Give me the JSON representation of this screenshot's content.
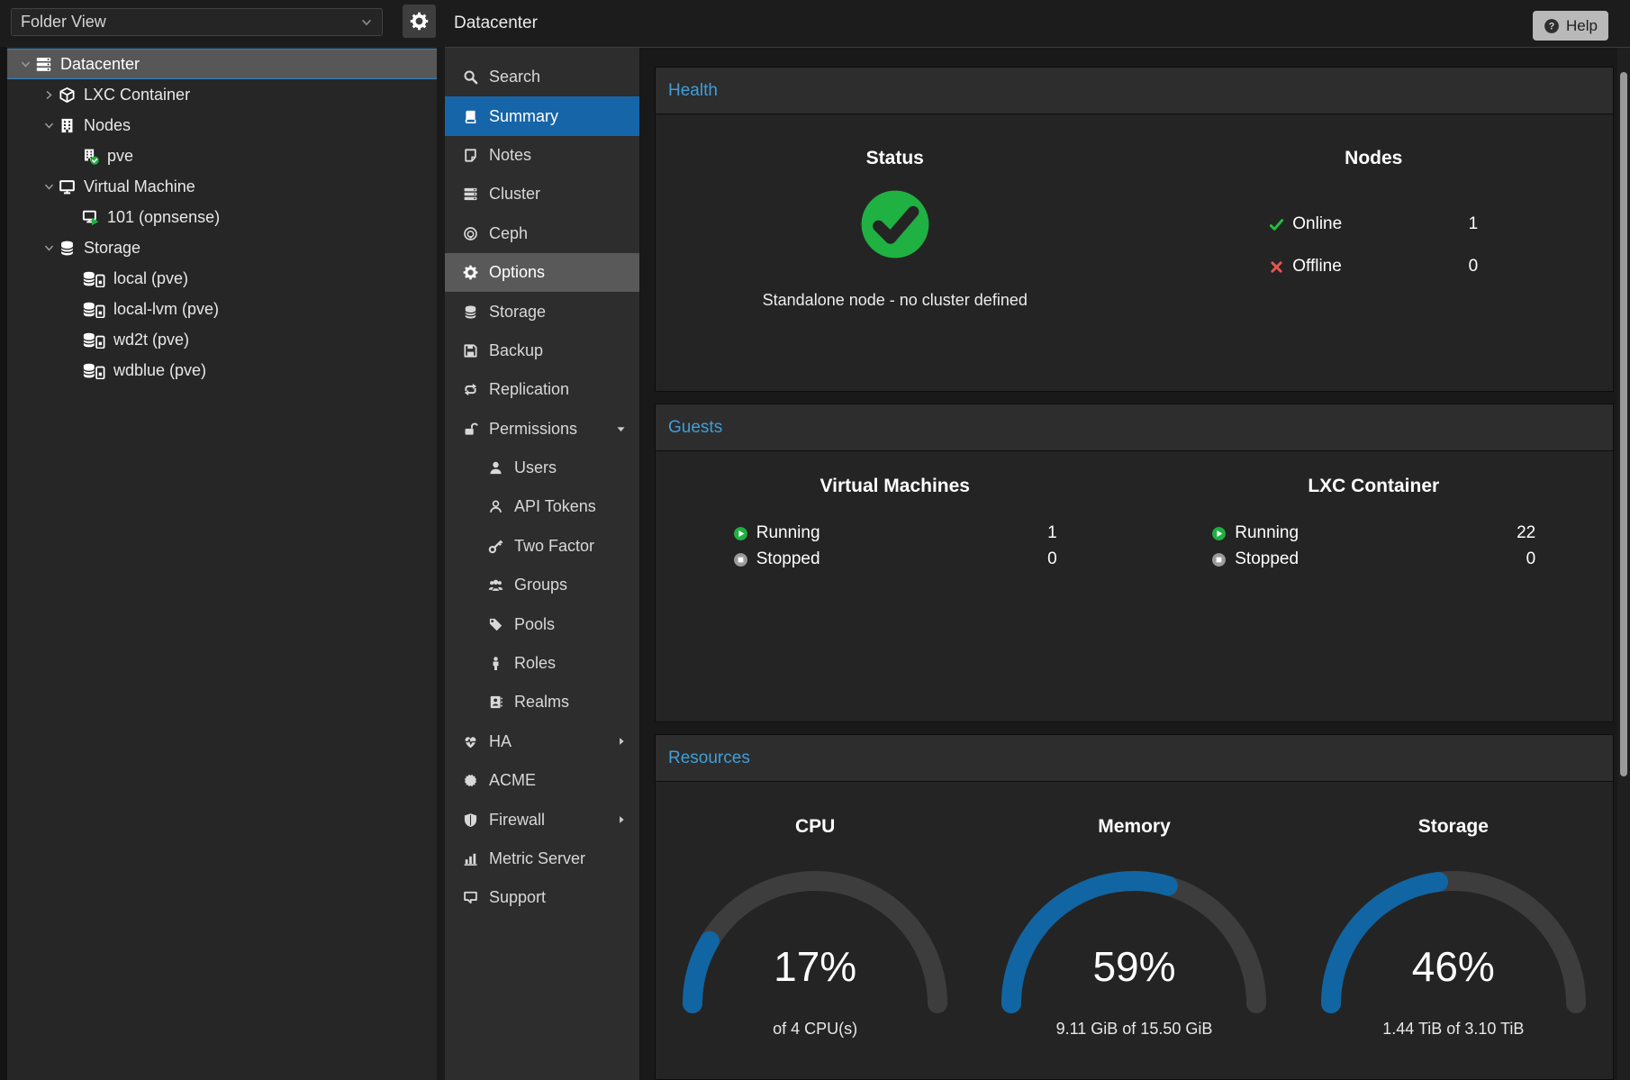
{
  "colors": {
    "accent_blue": "#1665a8",
    "panel_title_blue": "#3f9fd9",
    "gauge_blue": "#1165a3",
    "gauge_track": "#3d3d3d",
    "status_green": "#1fb141",
    "offline_red": "#e4564f"
  },
  "topbar": {
    "view_select_value": "Folder View",
    "view_select_icon": "chevron-down-icon",
    "gear_icon": "gear-icon",
    "title": "Datacenter",
    "help_label": "Help",
    "help_icon": "question-circle-icon"
  },
  "tree": {
    "items": [
      {
        "label": "Datacenter",
        "icon": "server-icon",
        "level": 0,
        "expander": "down",
        "selected": true
      },
      {
        "label": "LXC Container",
        "icon": "cube-icon",
        "level": 1,
        "expander": "right",
        "selected": false
      },
      {
        "label": "Nodes",
        "icon": "building-icon",
        "level": 1,
        "expander": "down",
        "selected": false
      },
      {
        "label": "pve",
        "icon": "building-check-icon",
        "level": 2,
        "expander": "none",
        "selected": false
      },
      {
        "label": "Virtual Machine",
        "icon": "monitor-icon",
        "level": 1,
        "expander": "down",
        "selected": false
      },
      {
        "label": "101 (opnsense)",
        "icon": "monitor-play-icon",
        "level": 2,
        "expander": "none",
        "selected": false
      },
      {
        "label": "Storage",
        "icon": "database-icon",
        "level": 1,
        "expander": "down",
        "selected": false
      },
      {
        "label": "local (pve)",
        "icon": "database-drive-icon",
        "level": 2,
        "expander": "none",
        "selected": false
      },
      {
        "label": "local-lvm (pve)",
        "icon": "database-drive-icon",
        "level": 2,
        "expander": "none",
        "selected": false
      },
      {
        "label": "wd2t (pve)",
        "icon": "database-drive-icon",
        "level": 2,
        "expander": "none",
        "selected": false
      },
      {
        "label": "wdblue (pve)",
        "icon": "database-drive-icon",
        "level": 2,
        "expander": "none",
        "selected": false
      }
    ]
  },
  "menu": {
    "items": [
      {
        "label": "Search",
        "icon": "magnifier-icon",
        "sub": false,
        "state": "normal",
        "arrow": "none"
      },
      {
        "label": "Summary",
        "icon": "book-icon",
        "sub": false,
        "state": "selected",
        "arrow": "none"
      },
      {
        "label": "Notes",
        "icon": "note-icon",
        "sub": false,
        "state": "normal",
        "arrow": "none"
      },
      {
        "label": "Cluster",
        "icon": "server-icon",
        "sub": false,
        "state": "normal",
        "arrow": "none"
      },
      {
        "label": "Ceph",
        "icon": "ceph-icon",
        "sub": false,
        "state": "normal",
        "arrow": "none"
      },
      {
        "label": "Options",
        "icon": "gear-icon",
        "sub": false,
        "state": "hovered",
        "arrow": "none"
      },
      {
        "label": "Storage",
        "icon": "database-icon",
        "sub": false,
        "state": "normal",
        "arrow": "none"
      },
      {
        "label": "Backup",
        "icon": "floppy-icon",
        "sub": false,
        "state": "normal",
        "arrow": "none"
      },
      {
        "label": "Replication",
        "icon": "replication-icon",
        "sub": false,
        "state": "normal",
        "arrow": "none"
      },
      {
        "label": "Permissions",
        "icon": "unlock-icon",
        "sub": false,
        "state": "normal",
        "arrow": "down"
      },
      {
        "label": "Users",
        "icon": "user-icon",
        "sub": true,
        "state": "normal",
        "arrow": "none"
      },
      {
        "label": "API Tokens",
        "icon": "user-outline-icon",
        "sub": true,
        "state": "normal",
        "arrow": "none"
      },
      {
        "label": "Two Factor",
        "icon": "key-icon",
        "sub": true,
        "state": "normal",
        "arrow": "none"
      },
      {
        "label": "Groups",
        "icon": "users-icon",
        "sub": true,
        "state": "normal",
        "arrow": "none"
      },
      {
        "label": "Pools",
        "icon": "tag-icon",
        "sub": true,
        "state": "normal",
        "arrow": "none"
      },
      {
        "label": "Roles",
        "icon": "person-icon",
        "sub": true,
        "state": "normal",
        "arrow": "none"
      },
      {
        "label": "Realms",
        "icon": "address-book-icon",
        "sub": true,
        "state": "normal",
        "arrow": "none"
      },
      {
        "label": "HA",
        "icon": "heartbeat-icon",
        "sub": false,
        "state": "normal",
        "arrow": "right"
      },
      {
        "label": "ACME",
        "icon": "acme-icon",
        "sub": false,
        "state": "normal",
        "arrow": "none"
      },
      {
        "label": "Firewall",
        "icon": "shield-icon",
        "sub": false,
        "state": "normal",
        "arrow": "right"
      },
      {
        "label": "Metric Server",
        "icon": "chart-icon",
        "sub": false,
        "state": "normal",
        "arrow": "none"
      },
      {
        "label": "Support",
        "icon": "comment-icon",
        "sub": false,
        "state": "normal",
        "arrow": "none"
      }
    ]
  },
  "health": {
    "title": "Health",
    "status": {
      "heading": "Status",
      "icon": "check-circle-icon",
      "message": "Standalone node - no cluster defined"
    },
    "nodes": {
      "heading": "Nodes",
      "rows": [
        {
          "icon": "check-icon",
          "label": "Online",
          "value": "1"
        },
        {
          "icon": "cross-icon",
          "label": "Offline",
          "value": "0"
        }
      ]
    }
  },
  "guests": {
    "title": "Guests",
    "groups": [
      {
        "heading": "Virtual Machines",
        "rows": [
          {
            "icon": "play-circle-icon",
            "label": "Running",
            "value": "1"
          },
          {
            "icon": "stop-circle-icon",
            "label": "Stopped",
            "value": "0"
          }
        ]
      },
      {
        "heading": "LXC Container",
        "rows": [
          {
            "icon": "play-circle-icon",
            "label": "Running",
            "value": "22"
          },
          {
            "icon": "stop-circle-icon",
            "label": "Stopped",
            "value": "0"
          }
        ]
      }
    ]
  },
  "resources": {
    "title": "Resources",
    "chart_data": [
      {
        "type": "gauge",
        "title": "CPU",
        "percent": 17,
        "label": "17%",
        "sublabel": "of 4 CPU(s)",
        "range": [
          0,
          100
        ]
      },
      {
        "type": "gauge",
        "title": "Memory",
        "percent": 59,
        "label": "59%",
        "sublabel": "9.11 GiB of 15.50 GiB",
        "range": [
          0,
          100
        ]
      },
      {
        "type": "gauge",
        "title": "Storage",
        "percent": 46,
        "label": "46%",
        "sublabel": "1.44 TiB of 3.10 TiB",
        "range": [
          0,
          100
        ]
      }
    ]
  }
}
